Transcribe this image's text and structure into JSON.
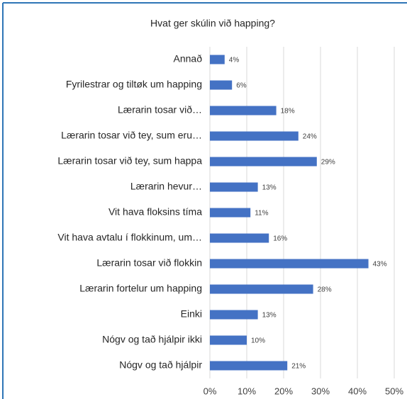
{
  "chart_data": {
    "type": "bar",
    "orientation": "horizontal",
    "title": "Hvat ger skúlin við happing?",
    "categories": [
      "Annað",
      "Fyrilestrar og tiltøk um happing",
      "Lærarin tosar við…",
      "Lærarin tosar við tey, sum eru…",
      "Lærarin tosar við tey, sum happa",
      "Lærarin hevur…",
      "Vit hava floksins tíma",
      "Vit hava avtalu í flokkinum, um…",
      "Lærarin tosar við flokkin",
      "Lærarin fortelur um happing",
      "Einki",
      "Nógv og tað hjálpir ikki",
      "Nógv og tað hjálpir"
    ],
    "values": [
      4,
      6,
      18,
      24,
      29,
      13,
      11,
      16,
      43,
      28,
      13,
      10,
      21
    ],
    "value_labels": [
      "4%",
      "6%",
      "18%",
      "24%",
      "29%",
      "13%",
      "11%",
      "16%",
      "43%",
      "28%",
      "13%",
      "10%",
      "21%"
    ],
    "color": "#4472c4",
    "xlim": [
      0,
      50
    ],
    "xticks": [
      {
        "value": 0,
        "label": "0%"
      },
      {
        "value": 10,
        "label": "10%"
      },
      {
        "value": 20,
        "label": "20%"
      },
      {
        "value": 30,
        "label": "30%"
      },
      {
        "value": 40,
        "label": "40%"
      },
      {
        "value": 50,
        "label": "50%"
      }
    ],
    "grid": true
  }
}
